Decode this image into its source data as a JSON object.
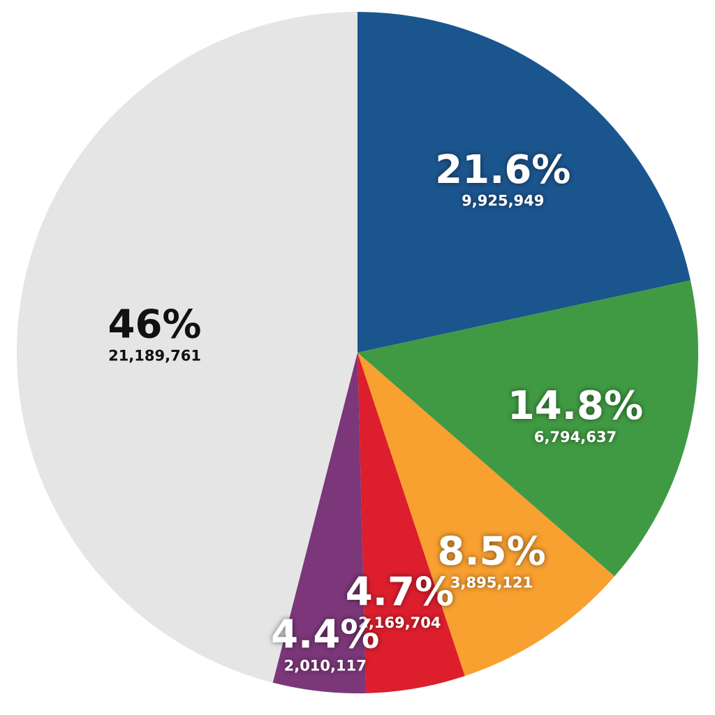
{
  "chart_data": {
    "type": "pie",
    "values": [
      21.6,
      14.8,
      8.5,
      4.7,
      4.4,
      46
    ],
    "value_labels": [
      "21.6%",
      "14.8%",
      "8.5%",
      "4.7%",
      "4.4%",
      "46%"
    ],
    "counts": [
      9925949,
      6794637,
      3895121,
      2169704,
      2010117,
      21189761
    ],
    "count_labels": [
      "9,925,949",
      "6,794,637",
      "3,895,121",
      "2,169,704",
      "2,010,117",
      "21,189,761"
    ],
    "colors": [
      "#1b558e",
      "#409a43",
      "#f8a030",
      "#dc1e2d",
      "#7b3779",
      "#e5e5e5"
    ]
  }
}
